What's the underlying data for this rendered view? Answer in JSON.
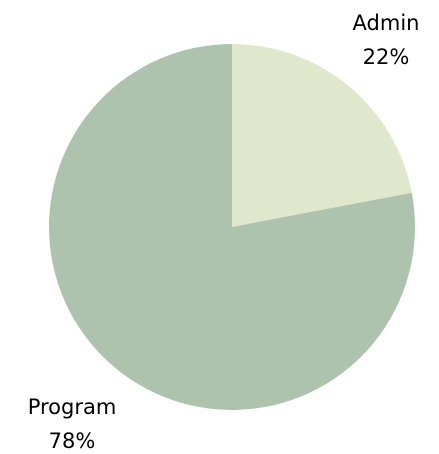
{
  "chart_data": {
    "type": "pie",
    "title": "",
    "slices": [
      {
        "label": "Admin",
        "value": 22,
        "value_label": "22%",
        "color": "#dfe8cc"
      },
      {
        "label": "Program",
        "value": 78,
        "value_label": "78%",
        "color": "#adc3ad"
      }
    ],
    "start_angle_deg": 0,
    "direction": "clockwise",
    "legend": "none",
    "labels": "outside"
  }
}
